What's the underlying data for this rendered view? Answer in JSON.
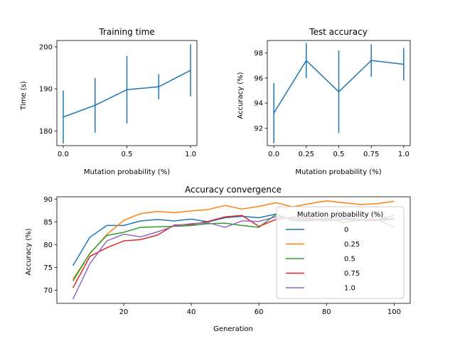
{
  "chart_data": [
    {
      "type": "line",
      "title": "Training time",
      "xlabel": "Mutation probability (%)",
      "ylabel": "Time (s)",
      "x": [
        0.0,
        0.25,
        0.5,
        0.75,
        1.0
      ],
      "y": [
        183.3,
        186.1,
        189.8,
        190.5,
        194.4
      ],
      "yerr": [
        6.3,
        6.5,
        8.0,
        3.0,
        6.2
      ],
      "xlim": [
        -0.05,
        1.05
      ],
      "ylim": [
        176.5,
        201.5
      ],
      "xticks": [
        0.0,
        0.5,
        1.0
      ],
      "xtick_labels": [
        "0.0",
        "0.5",
        "1.0"
      ],
      "yticks": [
        180,
        190,
        200
      ],
      "ytick_labels": [
        "180",
        "190",
        "200"
      ],
      "color": "#1f77b4",
      "grid": false
    },
    {
      "type": "line",
      "title": "Test accuracy",
      "xlabel": "Mutation probability (%)",
      "ylabel": "Accuracy (%)",
      "x": [
        0.0,
        0.25,
        0.5,
        0.75,
        1.0
      ],
      "y": [
        93.2,
        97.4,
        94.9,
        97.4,
        97.1
      ],
      "yerr": [
        2.4,
        1.4,
        3.3,
        1.3,
        1.3
      ],
      "xlim": [
        -0.05,
        1.05
      ],
      "ylim": [
        90.6,
        99.0
      ],
      "xticks": [
        0.0,
        0.25,
        0.5,
        0.75,
        1.0
      ],
      "xtick_labels": [
        "0.0",
        "0.25",
        "0.5",
        "0.75",
        "1.0"
      ],
      "yticks": [
        92,
        94,
        96,
        98
      ],
      "ytick_labels": [
        "92",
        "94",
        "96",
        "98"
      ],
      "color": "#1f77b4",
      "grid": false
    },
    {
      "type": "line",
      "title": "Accuracy convergence",
      "xlabel": "Generation",
      "ylabel": "Accuracy (%)",
      "x": [
        5,
        10,
        15,
        20,
        25,
        30,
        35,
        40,
        45,
        50,
        55,
        60,
        65,
        70,
        75,
        80,
        85,
        90,
        95,
        100
      ],
      "series": [
        {
          "name": "0",
          "color": "#1f77b4",
          "values": [
            75.4,
            81.6,
            84.2,
            84.2,
            85.2,
            85.5,
            85.2,
            85.6,
            85.0,
            85.9,
            86.2,
            85.9,
            86.7,
            85.3,
            85.2,
            85.8,
            86.0,
            85.5,
            85.5,
            86.4
          ]
        },
        {
          "name": "0.25",
          "color": "#ff7f0e",
          "values": [
            72.4,
            78.0,
            82.2,
            85.3,
            86.8,
            87.3,
            87.0,
            87.4,
            87.7,
            88.6,
            87.8,
            88.4,
            89.2,
            88.3,
            89.0,
            89.6,
            89.2,
            88.8,
            89.0,
            89.5
          ]
        },
        {
          "name": "0.5",
          "color": "#2ca02c",
          "values": [
            72.0,
            78.1,
            82.0,
            82.7,
            83.8,
            83.9,
            84.0,
            84.2,
            84.6,
            84.7,
            84.2,
            83.8,
            86.6,
            85.3,
            85.5,
            85.7,
            84.9,
            85.4,
            85.6,
            85.7
          ]
        },
        {
          "name": "0.75",
          "color": "#d62728",
          "values": [
            70.5,
            77.4,
            79.3,
            80.8,
            81.1,
            82.1,
            84.3,
            84.4,
            85.1,
            86.1,
            86.4,
            84.0,
            85.5,
            86.0,
            85.8,
            85.3,
            85.5,
            85.3,
            85.3,
            85.6
          ]
        },
        {
          "name": "1.0",
          "color": "#9467bd",
          "values": [
            68.0,
            75.8,
            80.8,
            82.3,
            81.7,
            82.8,
            84.1,
            84.6,
            84.8,
            83.8,
            85.2,
            85.1,
            86.1,
            85.6,
            85.5,
            85.2,
            85.7,
            85.4,
            85.5,
            83.8
          ]
        }
      ],
      "xlim": [
        0.25,
        104.75
      ],
      "ylim": [
        67.1,
        90.5
      ],
      "xticks": [
        20,
        40,
        60,
        80,
        100
      ],
      "xtick_labels": [
        "20",
        "40",
        "60",
        "80",
        "100"
      ],
      "yticks": [
        70,
        75,
        80,
        85,
        90
      ],
      "ytick_labels": [
        "70",
        "75",
        "80",
        "85",
        "90"
      ],
      "legend": {
        "title": "Mutation probability (%)",
        "placement": "center-right"
      },
      "grid": false
    }
  ]
}
